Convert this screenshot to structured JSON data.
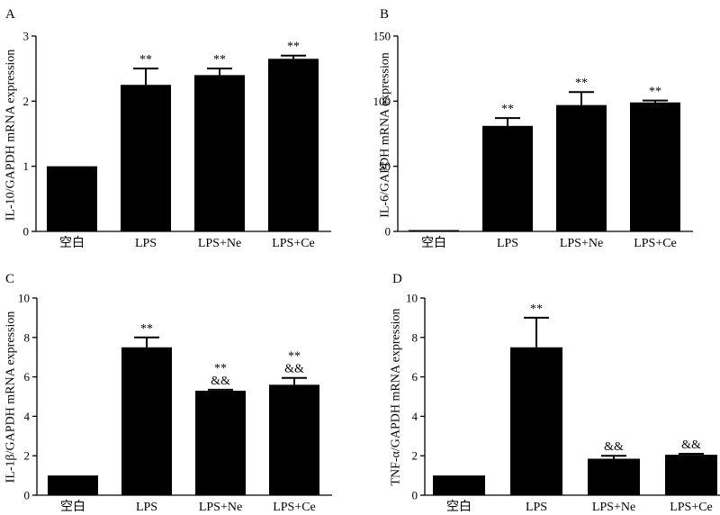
{
  "chart_data": [
    {
      "type": "bar",
      "panel": "A",
      "ylabel": "IL-10/GAPDH mRNA expression",
      "ylim": [
        0,
        3
      ],
      "yticks": [
        "0",
        "1",
        "2",
        "3"
      ],
      "categories": [
        "空白",
        "LPS",
        "LPS+Ne",
        "LPS+Ce"
      ],
      "values": [
        1.0,
        2.25,
        2.4,
        2.65
      ],
      "errors": [
        0.0,
        0.25,
        0.1,
        0.05
      ],
      "annotations": [
        [],
        [
          "**"
        ],
        [
          "**"
        ],
        [
          "**"
        ]
      ]
    },
    {
      "type": "bar",
      "panel": "B",
      "ylabel": "IL-6/GAPDH mRNA expression",
      "ylim": [
        0,
        150
      ],
      "yticks": [
        "0",
        "50",
        "100",
        "150"
      ],
      "categories": [
        "空白",
        "LPS",
        "LPS+Ne",
        "LPS+Ce"
      ],
      "values": [
        1.0,
        81,
        97,
        99
      ],
      "errors": [
        0.0,
        6,
        10,
        1.5
      ],
      "annotations": [
        [],
        [
          "**"
        ],
        [
          "**"
        ],
        [
          "**"
        ]
      ]
    },
    {
      "type": "bar",
      "panel": "C",
      "ylabel": "IL-1β/GAPDH mRNA expression",
      "ylim": [
        0,
        10
      ],
      "yticks": [
        "0",
        "2",
        "4",
        "6",
        "8",
        "10"
      ],
      "categories": [
        "空白",
        "LPS",
        "LPS+Ne",
        "LPS+Ce"
      ],
      "values": [
        1.0,
        7.5,
        5.3,
        5.6
      ],
      "errors": [
        0.0,
        0.5,
        0.05,
        0.35
      ],
      "annotations": [
        [],
        [
          "**"
        ],
        [
          "&&",
          "**"
        ],
        [
          "&&",
          "**"
        ]
      ]
    },
    {
      "type": "bar",
      "panel": "D",
      "ylabel": "TNF-α/GAPDH mRNA expression",
      "ylim": [
        0,
        10
      ],
      "yticks": [
        "0",
        "2",
        "4",
        "6",
        "8",
        "10"
      ],
      "categories": [
        "空白",
        "LPS",
        "LPS+Ne",
        "LPS+Ce"
      ],
      "values": [
        1.0,
        7.5,
        1.85,
        2.05
      ],
      "errors": [
        0.0,
        1.5,
        0.15,
        0.05
      ],
      "annotations": [
        [],
        [
          "**"
        ],
        [
          "&&"
        ],
        [
          "&&"
        ]
      ]
    }
  ]
}
